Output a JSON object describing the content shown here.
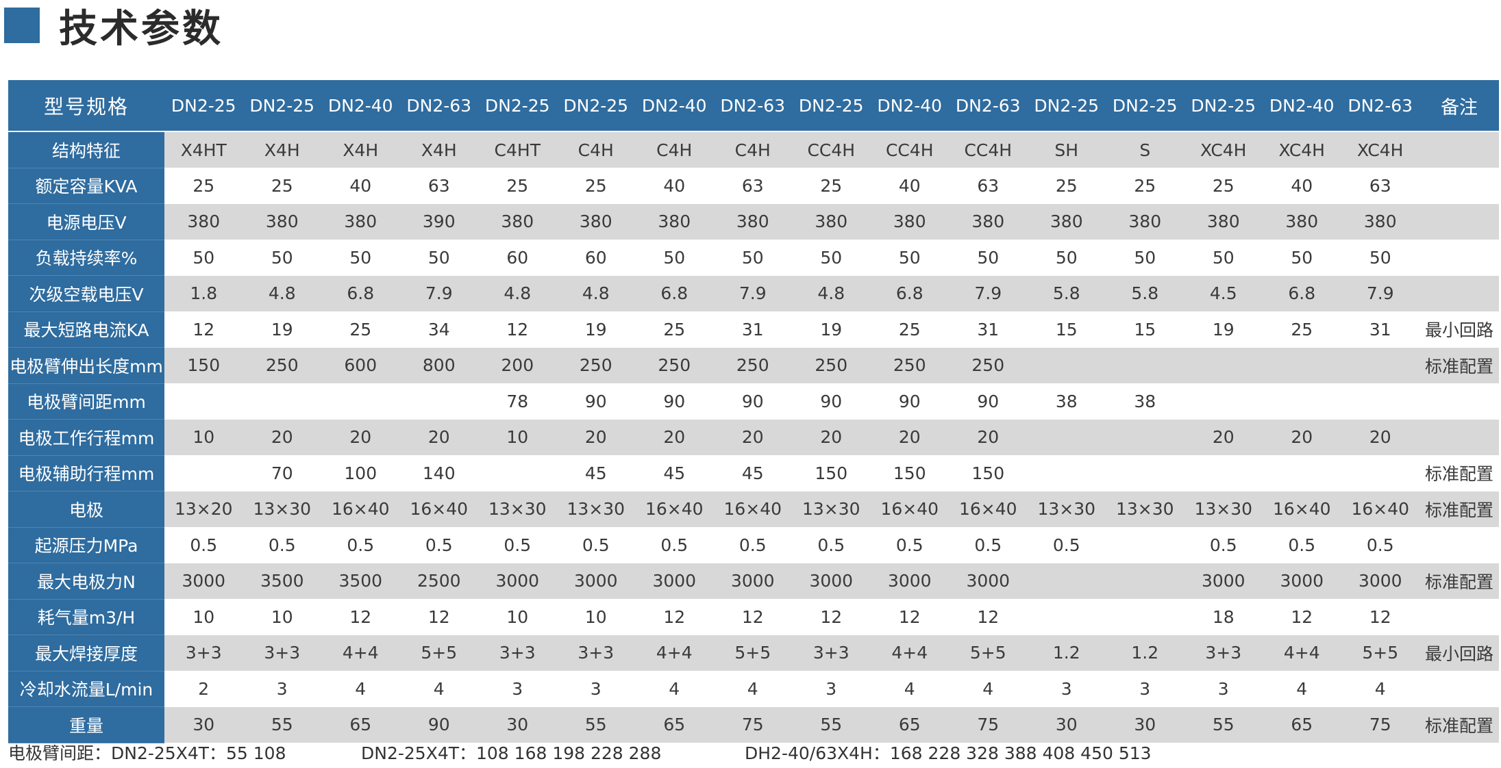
{
  "title": "技术参数",
  "header": {
    "label": "型号规格",
    "models": [
      "DN2-25",
      "DN2-25",
      "DN2-40",
      "DN2-63",
      "DN2-25",
      "DN2-25",
      "DN2-40",
      "DN2-63",
      "DN2-25",
      "DN2-40",
      "DN2-63",
      "DN2-25",
      "DN2-25",
      "DN2-25",
      "DN2-40",
      "DN2-63"
    ],
    "note": "备注"
  },
  "rows": [
    {
      "label": "结构特征",
      "values": [
        "X4HT",
        "X4H",
        "X4H",
        "X4H",
        "C4HT",
        "C4H",
        "C4H",
        "C4H",
        "CC4H",
        "CC4H",
        "CC4H",
        "SH",
        "S",
        "XC4H",
        "XC4H",
        "XC4H"
      ],
      "note": ""
    },
    {
      "label": "额定容量KVA",
      "values": [
        "25",
        "25",
        "40",
        "63",
        "25",
        "25",
        "40",
        "63",
        "25",
        "40",
        "63",
        "25",
        "25",
        "25",
        "40",
        "63"
      ],
      "note": ""
    },
    {
      "label": "电源电压V",
      "values": [
        "380",
        "380",
        "380",
        "390",
        "380",
        "380",
        "380",
        "380",
        "380",
        "380",
        "380",
        "380",
        "380",
        "380",
        "380",
        "380"
      ],
      "note": ""
    },
    {
      "label": "负载持续率%",
      "values": [
        "50",
        "50",
        "50",
        "50",
        "60",
        "60",
        "50",
        "50",
        "50",
        "50",
        "50",
        "50",
        "50",
        "50",
        "50",
        "50"
      ],
      "note": ""
    },
    {
      "label": "次级空载电压V",
      "values": [
        "1.8",
        "4.8",
        "6.8",
        "7.9",
        "4.8",
        "4.8",
        "6.8",
        "7.9",
        "4.8",
        "6.8",
        "7.9",
        "5.8",
        "5.8",
        "4.5",
        "6.8",
        "7.9"
      ],
      "note": ""
    },
    {
      "label": "最大短路电流KA",
      "values": [
        "12",
        "19",
        "25",
        "34",
        "12",
        "19",
        "25",
        "31",
        "19",
        "25",
        "31",
        "15",
        "15",
        "19",
        "25",
        "31"
      ],
      "note": "最小回路"
    },
    {
      "label": "电极臂伸出长度mm",
      "values": [
        "150",
        "250",
        "600",
        "800",
        "200",
        "250",
        "250",
        "250",
        "250",
        "250",
        "250",
        "",
        "",
        "",
        "",
        ""
      ],
      "note": "标准配置"
    },
    {
      "label": "电极臂间距mm",
      "values": [
        "",
        "",
        "",
        "",
        "78",
        "90",
        "90",
        "90",
        "90",
        "90",
        "90",
        "38",
        "38",
        "",
        "",
        ""
      ],
      "note": ""
    },
    {
      "label": "电极工作行程mm",
      "values": [
        "10",
        "20",
        "20",
        "20",
        "10",
        "20",
        "20",
        "20",
        "20",
        "20",
        "20",
        "",
        "",
        "20",
        "20",
        "20"
      ],
      "note": ""
    },
    {
      "label": "电极辅助行程mm",
      "values": [
        "",
        "70",
        "100",
        "140",
        "",
        "45",
        "45",
        "45",
        "150",
        "150",
        "150",
        "",
        "",
        "",
        "",
        ""
      ],
      "note": "标准配置"
    },
    {
      "label": "电极",
      "values": [
        "13×20",
        "13×30",
        "16×40",
        "16×40",
        "13×30",
        "13×30",
        "16×40",
        "16×40",
        "13×30",
        "16×40",
        "16×40",
        "13×30",
        "13×30",
        "13×30",
        "16×40",
        "16×40"
      ],
      "note": "标准配置"
    },
    {
      "label": "起源压力MPa",
      "values": [
        "0.5",
        "0.5",
        "0.5",
        "0.5",
        "0.5",
        "0.5",
        "0.5",
        "0.5",
        "0.5",
        "0.5",
        "0.5",
        "0.5",
        "",
        "0.5",
        "0.5",
        "0.5"
      ],
      "note": ""
    },
    {
      "label": "最大电极力N",
      "values": [
        "3000",
        "3500",
        "3500",
        "2500",
        "3000",
        "3000",
        "3000",
        "3000",
        "3000",
        "3000",
        "3000",
        "",
        "",
        "3000",
        "3000",
        "3000"
      ],
      "note": "标准配置"
    },
    {
      "label": "耗气量m3/H",
      "values": [
        "10",
        "10",
        "12",
        "12",
        "10",
        "10",
        "12",
        "12",
        "12",
        "12",
        "12",
        "",
        "",
        "18",
        "12",
        "12"
      ],
      "note": ""
    },
    {
      "label": "最大焊接厚度",
      "values": [
        "3+3",
        "3+3",
        "4+4",
        "5+5",
        "3+3",
        "3+3",
        "4+4",
        "5+5",
        "3+3",
        "4+4",
        "5+5",
        "1.2",
        "1.2",
        "3+3",
        "4+4",
        "5+5"
      ],
      "note": "最小回路"
    },
    {
      "label": "冷却水流量L/min",
      "values": [
        "2",
        "3",
        "4",
        "4",
        "3",
        "3",
        "4",
        "4",
        "3",
        "4",
        "4",
        "3",
        "3",
        "3",
        "4",
        "4"
      ],
      "note": ""
    },
    {
      "label": "重量",
      "values": [
        "30",
        "55",
        "65",
        "90",
        "30",
        "55",
        "65",
        "75",
        "55",
        "65",
        "75",
        "30",
        "30",
        "55",
        "65",
        "75"
      ],
      "note": "标准配置"
    }
  ],
  "footer": {
    "seg1": "电极臂间距：DN2-25X4T：55 108",
    "seg2": "DN2-25X4T：108 168 198 228 288",
    "seg3": "DH2-40/63X4H：168 228 328 388 408 450 513"
  },
  "colors": {
    "header_blue": "#2f6c9f",
    "row_shade": "#d8d8d8"
  }
}
